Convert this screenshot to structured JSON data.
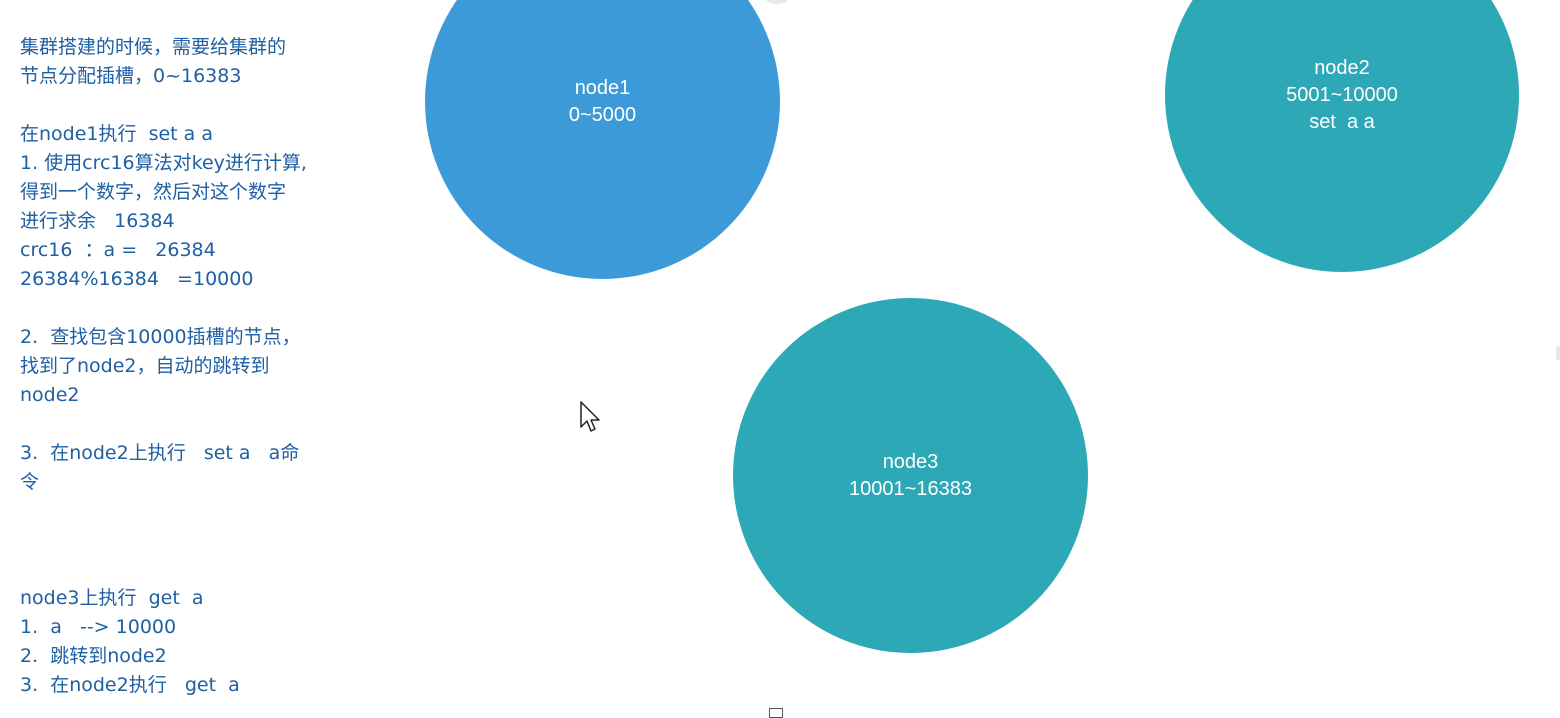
{
  "notes": {
    "intro": [
      "集群搭建的时候，需要给集群的",
      "节点分配插槽，0~16383"
    ],
    "set_example": [
      "在node1执行  set a a",
      "1. 使用crc16算法对key进行计算,",
      "得到一个数字，然后对这个数字",
      "进行求余   16384",
      "crc16  ：a =   26384",
      "26384%16384   =10000"
    ],
    "step2": [
      "2.  查找包含10000插槽的节点，",
      "找到了node2，自动的跳转到",
      "node2"
    ],
    "step3": [
      "3.  在node2上执行   set a   a命",
      "令"
    ],
    "get_example": [
      "node3上执行  get  a",
      "1.  a   --> 10000",
      "2.  跳转到node2",
      "3.  在node2执行   get  a"
    ]
  },
  "nodes": [
    {
      "id": "node1",
      "lines": [
        "node1",
        "0~5000"
      ],
      "color": "#3d9ad9"
    },
    {
      "id": "node2",
      "lines": [
        "node2",
        "5001~10000",
        "set  a a"
      ],
      "color": "#2da8b7"
    },
    {
      "id": "node3",
      "lines": [
        "node3",
        "10001~16383"
      ],
      "color": "#2da8b7"
    }
  ],
  "colors": {
    "note_text": "#1f5fa3",
    "node1_fill": "#3d9ad9",
    "node_fill": "#2da8b7",
    "background": "#ffffff"
  },
  "icons": {
    "cursor": "mouse-pointer-icon"
  }
}
